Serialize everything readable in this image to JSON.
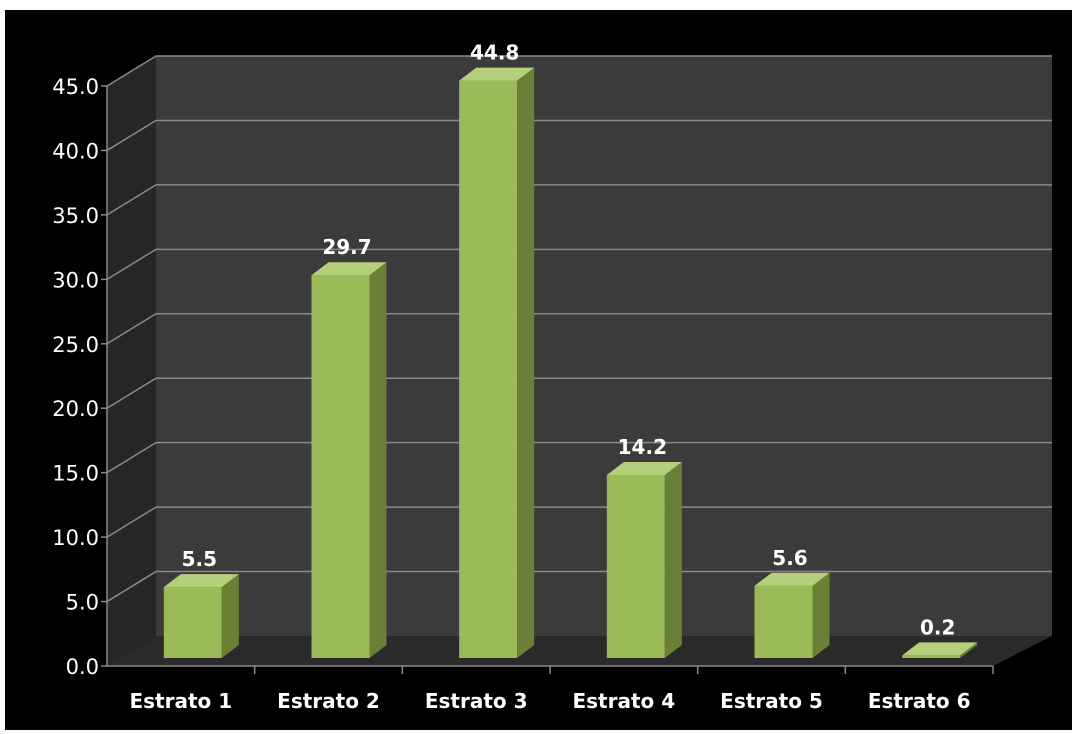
{
  "chart_data": {
    "type": "bar",
    "style": "3d-column",
    "categories": [
      "Estrato 1",
      "Estrato 2",
      "Estrato 3",
      "Estrato 4",
      "Estrato 5",
      "Estrato 6"
    ],
    "values": [
      5.5,
      29.7,
      44.8,
      14.2,
      5.6,
      0.2
    ],
    "data_labels": [
      "5.5",
      "29.7",
      "44.8",
      "14.2",
      "5.6",
      "0.2"
    ],
    "y_ticks": [
      "0.0",
      "5.0",
      "10.0",
      "15.0",
      "20.0",
      "25.0",
      "30.0",
      "35.0",
      "40.0",
      "45.0"
    ],
    "ylim": [
      0,
      45
    ],
    "grid": true,
    "legend": false,
    "title": "",
    "xlabel": "",
    "ylabel": "",
    "colors": {
      "background": "#000000",
      "wall": "#3b3b3b",
      "floor": "#2a2a2a",
      "gridline": "#8a8a8a",
      "bar_front": "#9bbb59",
      "bar_side": "#6a8034",
      "bar_top": "#b5d07a",
      "text": "#ffffff"
    }
  }
}
